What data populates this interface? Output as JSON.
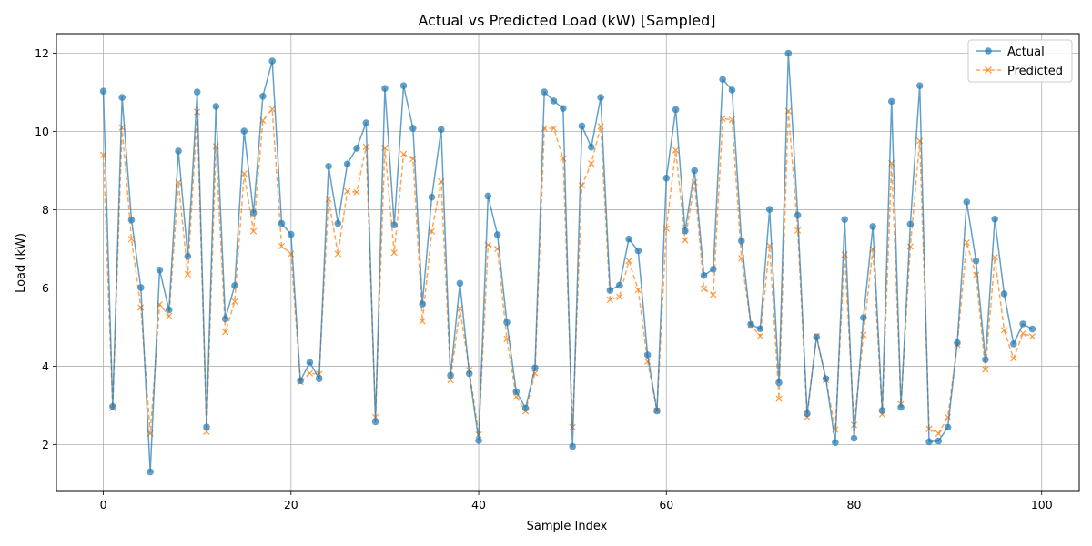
{
  "chart_data": {
    "type": "line",
    "title": "Actual vs Predicted Load (kW) [Sampled]",
    "xlabel": "Sample Index",
    "ylabel": "Load (kW)",
    "xlim": [
      -5,
      104
    ],
    "ylim": [
      0.8,
      12.5
    ],
    "xticks": [
      0,
      20,
      40,
      60,
      80,
      100
    ],
    "yticks": [
      2,
      4,
      6,
      8,
      10,
      12
    ],
    "grid": true,
    "legend_position": "top-right",
    "series": [
      {
        "name": "Actual",
        "color": "#1f77b4",
        "style": "solid",
        "marker": "circle",
        "values": [
          11.03,
          2.97,
          10.87,
          7.74,
          6.01,
          1.3,
          6.46,
          5.44,
          9.5,
          6.81,
          11.01,
          2.45,
          10.64,
          5.21,
          6.06,
          10.01,
          7.92,
          10.9,
          11.8,
          7.65,
          7.37,
          3.63,
          4.1,
          3.68,
          9.11,
          7.65,
          9.17,
          9.57,
          10.22,
          2.58,
          11.1,
          7.61,
          11.17,
          10.08,
          5.59,
          8.32,
          10.05,
          3.77,
          6.12,
          3.81,
          2.1,
          8.35,
          7.36,
          5.12,
          3.35,
          2.93,
          3.96,
          11.01,
          10.78,
          10.59,
          1.95,
          10.14,
          9.6,
          10.87,
          5.94,
          6.07,
          7.25,
          6.95,
          4.29,
          2.86,
          8.81,
          10.56,
          7.46,
          9.0,
          6.32,
          6.48,
          11.33,
          11.06,
          7.2,
          5.07,
          4.96,
          8.01,
          3.58,
          12.0,
          7.86,
          2.79,
          4.75,
          3.68,
          2.05,
          7.75,
          2.16,
          5.24,
          7.57,
          2.87,
          10.77,
          2.95,
          7.63,
          11.17,
          2.07,
          2.09,
          2.44,
          4.6,
          8.2,
          6.69,
          4.17,
          7.76,
          5.85,
          4.57,
          5.08,
          4.95
        ]
      },
      {
        "name": "Predicted",
        "color": "#ff7f0e",
        "style": "dashed",
        "marker": "x",
        "values": [
          9.4,
          2.93,
          10.1,
          7.25,
          5.5,
          2.28,
          5.58,
          5.28,
          8.7,
          6.35,
          10.5,
          2.33,
          9.62,
          4.88,
          5.65,
          8.92,
          7.45,
          10.28,
          10.57,
          7.07,
          6.87,
          3.6,
          3.82,
          3.8,
          8.27,
          6.87,
          8.47,
          8.45,
          9.61,
          2.7,
          9.58,
          6.9,
          9.42,
          9.3,
          5.15,
          7.45,
          8.72,
          3.65,
          5.47,
          3.9,
          2.25,
          7.1,
          7.0,
          4.7,
          3.22,
          2.85,
          3.82,
          10.08,
          10.08,
          9.31,
          2.44,
          8.62,
          9.18,
          10.13,
          5.7,
          5.77,
          6.69,
          5.95,
          4.12,
          2.87,
          7.52,
          9.52,
          7.22,
          8.7,
          5.98,
          5.83,
          10.33,
          10.3,
          6.76,
          5.06,
          4.77,
          7.08,
          3.17,
          10.52,
          7.47,
          2.7,
          4.77,
          3.65,
          2.38,
          6.85,
          2.5,
          4.8,
          6.99,
          2.77,
          9.19,
          3.03,
          7.06,
          9.76,
          2.4,
          2.28,
          2.7,
          4.55,
          7.16,
          6.33,
          3.92,
          6.78,
          4.92,
          4.2,
          4.84,
          4.76
        ]
      }
    ]
  }
}
